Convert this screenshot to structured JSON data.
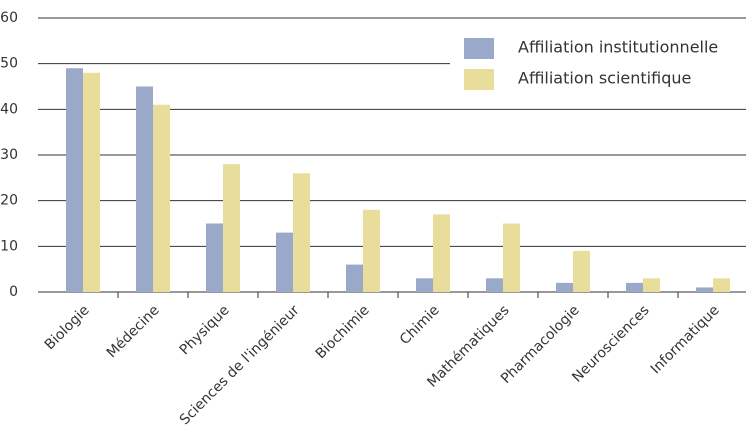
{
  "chart_data": {
    "type": "bar",
    "categories": [
      "Biologie",
      "Médecine",
      "Physique",
      "Sciences de l'ingénieur",
      "Biochimie",
      "Chimie",
      "Mathématiques",
      "Pharmacologie",
      "Neurosciences",
      "Informatique"
    ],
    "series": [
      {
        "name": "Affiliation institutionnelle",
        "color": "#9aa9c9",
        "values": [
          49,
          45,
          15,
          13,
          6,
          3,
          3,
          2,
          2,
          1
        ]
      },
      {
        "name": "Affiliation scientifique",
        "color": "#e9dd9c",
        "values": [
          48,
          41,
          28,
          26,
          18,
          17,
          15,
          9,
          3,
          3
        ]
      }
    ],
    "ylim": [
      0,
      60
    ],
    "yticks": [
      0,
      10,
      20,
      30,
      40,
      50,
      60
    ],
    "grid": true,
    "legend": "upper right"
  }
}
